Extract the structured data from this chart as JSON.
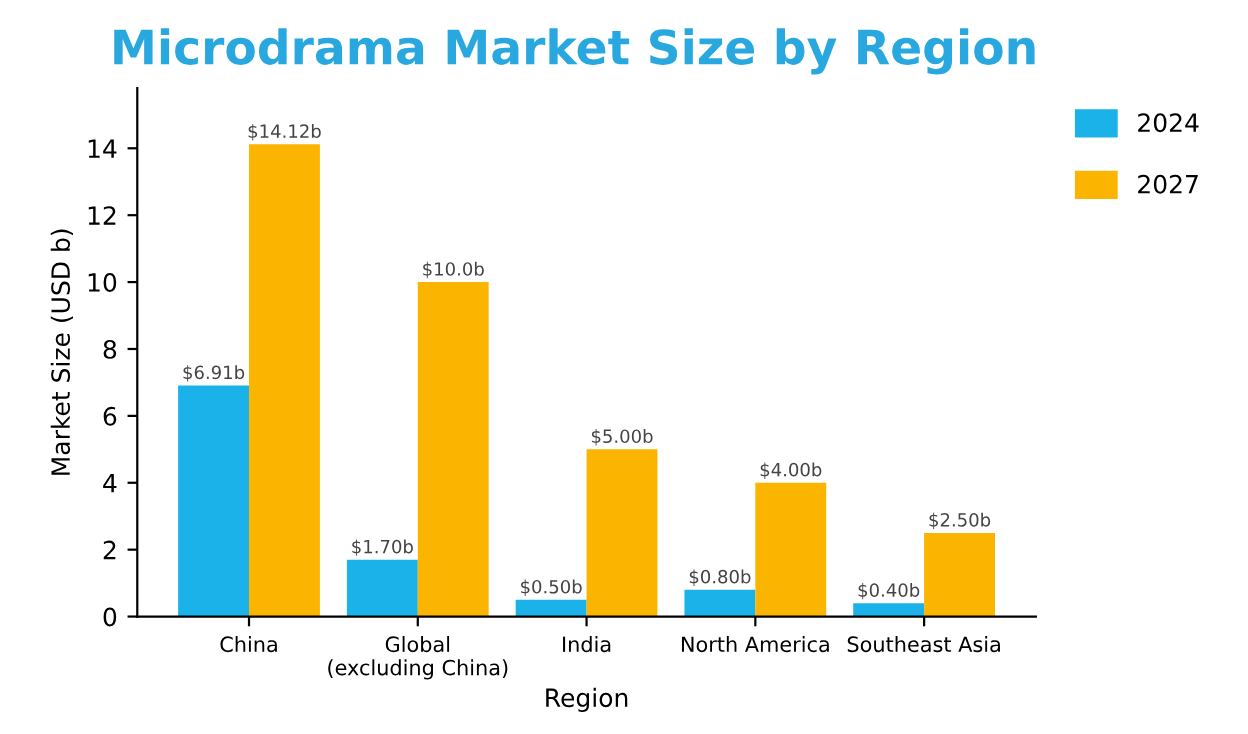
{
  "chart_data": {
    "type": "bar",
    "title": "Microdrama Market Size by Region",
    "xlabel": "Region",
    "ylabel": "Market Size (USD b)",
    "categories": [
      "China",
      "Global\n(excluding China)",
      "India",
      "North America",
      "Southeast Asia"
    ],
    "series": [
      {
        "name": "2024",
        "color": "#1ab2e8",
        "values": [
          6.91,
          1.7,
          0.5,
          0.8,
          0.4
        ],
        "value_labels": [
          "$6.91b",
          "$1.70b",
          "$0.50b",
          "$0.80b",
          "$0.40b"
        ]
      },
      {
        "name": "2027",
        "color": "#fbb500",
        "values": [
          14.12,
          10.0,
          5.0,
          4.0,
          2.5
        ],
        "value_labels": [
          "$14.12b",
          "$10.0b",
          "$5.00b",
          "$4.00b",
          "$2.50b"
        ]
      }
    ],
    "ylim": [
      0,
      15.8
    ],
    "yticks": [
      0,
      2,
      4,
      6,
      8,
      10,
      12,
      14
    ],
    "grid": false,
    "legend": "top right"
  }
}
